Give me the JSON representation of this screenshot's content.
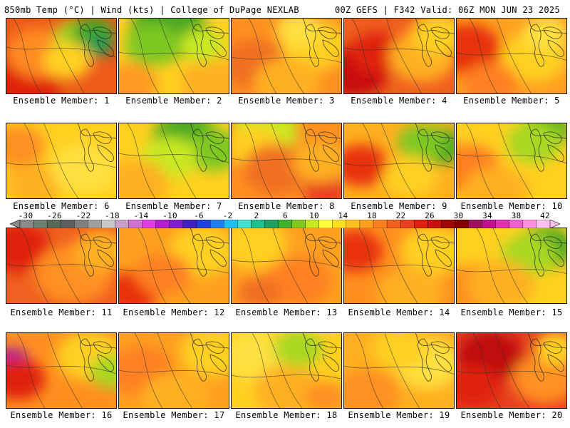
{
  "header": {
    "left": "850mb Temp (°C) | Wind (kts) | College of DuPage NEXLAB",
    "right": "00Z GEFS | F342 Valid: 06Z MON JUN 23 2025"
  },
  "panels": [
    {
      "label": "Ensemble Member: 1",
      "base": "#ee5a1a",
      "blobs": [
        [
          "#e02010",
          0.15,
          0.85,
          0.35
        ],
        [
          "#ff8a20",
          0.3,
          0.45,
          0.3
        ],
        [
          "#a8d820",
          0.65,
          0.25,
          0.22
        ],
        [
          "#4aa820",
          0.78,
          0.2,
          0.2
        ],
        [
          "#1a9a50",
          0.82,
          0.35,
          0.14
        ],
        [
          "#ffd020",
          0.55,
          0.55,
          0.22
        ]
      ]
    },
    {
      "label": "Ensemble Member: 2",
      "base": "#ffd020",
      "blobs": [
        [
          "#4aa820",
          0.45,
          0.15,
          0.35
        ],
        [
          "#7ec820",
          0.3,
          0.35,
          0.25
        ],
        [
          "#ff9a20",
          0.1,
          0.85,
          0.25
        ],
        [
          "#ffb020",
          0.85,
          0.85,
          0.3
        ],
        [
          "#c8e820",
          0.75,
          0.35,
          0.2
        ]
      ]
    },
    {
      "label": "Ensemble Member: 3",
      "base": "#ff9020",
      "blobs": [
        [
          "#ffd020",
          0.75,
          0.35,
          0.3
        ],
        [
          "#f07020",
          0.2,
          0.6,
          0.3
        ],
        [
          "#ffb020",
          0.5,
          0.85,
          0.3
        ],
        [
          "#ffe040",
          0.6,
          0.15,
          0.2
        ]
      ]
    },
    {
      "label": "Ensemble Member: 4",
      "base": "#f06020",
      "blobs": [
        [
          "#c81010",
          0.1,
          0.7,
          0.3
        ],
        [
          "#e02010",
          0.3,
          0.45,
          0.25
        ],
        [
          "#ffb020",
          0.7,
          0.5,
          0.3
        ],
        [
          "#ffd020",
          0.85,
          0.2,
          0.25
        ]
      ]
    },
    {
      "label": "Ensemble Member: 5",
      "base": "#ffa020",
      "blobs": [
        [
          "#e83010",
          0.1,
          0.4,
          0.3
        ],
        [
          "#ffd020",
          0.7,
          0.5,
          0.3
        ],
        [
          "#ff8020",
          0.3,
          0.85,
          0.25
        ],
        [
          "#ffe040",
          0.8,
          0.2,
          0.2
        ]
      ]
    },
    {
      "label": "Ensemble Member: 6",
      "base": "#ffd020",
      "blobs": [
        [
          "#ff9020",
          0.1,
          0.3,
          0.25
        ],
        [
          "#ffb020",
          0.25,
          0.8,
          0.25
        ],
        [
          "#ffe040",
          0.7,
          0.6,
          0.3
        ]
      ]
    },
    {
      "label": "Ensemble Member: 7",
      "base": "#ffd020",
      "blobs": [
        [
          "#4aa820",
          0.6,
          0.2,
          0.3
        ],
        [
          "#7ec820",
          0.85,
          0.35,
          0.25
        ],
        [
          "#c8e820",
          0.45,
          0.45,
          0.25
        ],
        [
          "#ffb020",
          0.15,
          0.8,
          0.3
        ]
      ]
    },
    {
      "label": "Ensemble Member: 8",
      "base": "#ff9020",
      "blobs": [
        [
          "#c8e820",
          0.3,
          0.1,
          0.3
        ],
        [
          "#ffd020",
          0.2,
          0.3,
          0.25
        ],
        [
          "#f07020",
          0.4,
          0.6,
          0.3
        ],
        [
          "#e84020",
          0.85,
          0.9,
          0.2
        ],
        [
          "#ffb020",
          0.8,
          0.5,
          0.25
        ]
      ]
    },
    {
      "label": "Ensemble Member: 9",
      "base": "#ffb020",
      "blobs": [
        [
          "#4aa820",
          0.85,
          0.3,
          0.22
        ],
        [
          "#7ec820",
          0.7,
          0.25,
          0.22
        ],
        [
          "#e83010",
          0.15,
          0.55,
          0.25
        ],
        [
          "#ffd020",
          0.6,
          0.7,
          0.25
        ]
      ]
    },
    {
      "label": "Ensemble Member: 10",
      "base": "#ffd020",
      "blobs": [
        [
          "#4aa820",
          0.8,
          0.1,
          0.22
        ],
        [
          "#a8d820",
          0.7,
          0.25,
          0.25
        ],
        [
          "#ff8020",
          0.1,
          0.6,
          0.3
        ],
        [
          "#ffb020",
          0.35,
          0.9,
          0.3
        ]
      ]
    },
    {
      "label": "Ensemble Member: 11",
      "base": "#f06020",
      "blobs": [
        [
          "#e02010",
          0.1,
          0.25,
          0.3
        ],
        [
          "#ff9020",
          0.6,
          0.6,
          0.35
        ],
        [
          "#ffb020",
          0.85,
          0.3,
          0.25
        ]
      ]
    },
    {
      "label": "Ensemble Member: 12",
      "base": "#ffa020",
      "blobs": [
        [
          "#e83010",
          0.1,
          0.85,
          0.25
        ],
        [
          "#ffd020",
          0.75,
          0.3,
          0.3
        ],
        [
          "#ff8020",
          0.4,
          0.6,
          0.25
        ]
      ]
    },
    {
      "label": "Ensemble Member: 13",
      "base": "#ffa020",
      "blobs": [
        [
          "#ffd020",
          0.2,
          0.2,
          0.3
        ],
        [
          "#ff8020",
          0.6,
          0.7,
          0.3
        ],
        [
          "#f07020",
          0.25,
          0.85,
          0.2
        ]
      ]
    },
    {
      "label": "Ensemble Member: 14",
      "base": "#ff9020",
      "blobs": [
        [
          "#e83010",
          0.1,
          0.3,
          0.25
        ],
        [
          "#ffd020",
          0.8,
          0.3,
          0.3
        ],
        [
          "#ffb020",
          0.6,
          0.85,
          0.3
        ]
      ]
    },
    {
      "label": "Ensemble Member: 15",
      "base": "#ffd020",
      "blobs": [
        [
          "#4aa820",
          0.8,
          0.25,
          0.25
        ],
        [
          "#a8d820",
          0.65,
          0.35,
          0.25
        ],
        [
          "#ff9020",
          0.15,
          0.8,
          0.3
        ],
        [
          "#ffb020",
          0.4,
          0.75,
          0.3
        ]
      ]
    },
    {
      "label": "Ensemble Member: 16",
      "base": "#ff9020",
      "blobs": [
        [
          "#a020a0",
          0.05,
          0.35,
          0.15
        ],
        [
          "#e02010",
          0.1,
          0.6,
          0.25
        ],
        [
          "#ffd020",
          0.75,
          0.3,
          0.3
        ],
        [
          "#a8d820",
          0.95,
          0.5,
          0.2
        ]
      ]
    },
    {
      "label": "Ensemble Member: 17",
      "base": "#ffa020",
      "blobs": [
        [
          "#ffd020",
          0.85,
          0.25,
          0.3
        ],
        [
          "#ff8020",
          0.2,
          0.5,
          0.3
        ],
        [
          "#ffb020",
          0.5,
          0.85,
          0.3
        ]
      ]
    },
    {
      "label": "Ensemble Member: 18",
      "base": "#ffd020",
      "blobs": [
        [
          "#ffe040",
          0.2,
          0.3,
          0.3
        ],
        [
          "#ffb020",
          0.5,
          0.75,
          0.3
        ],
        [
          "#ff9020",
          0.85,
          0.85,
          0.2
        ],
        [
          "#a8d820",
          0.6,
          0.2,
          0.22
        ]
      ]
    },
    {
      "label": "Ensemble Member: 19",
      "base": "#ffb020",
      "blobs": [
        [
          "#ffe040",
          0.75,
          0.4,
          0.3
        ],
        [
          "#ffd020",
          0.5,
          0.2,
          0.25
        ],
        [
          "#ff9020",
          0.2,
          0.8,
          0.3
        ]
      ]
    },
    {
      "label": "Ensemble Member: 20",
      "base": "#e84020",
      "blobs": [
        [
          "#c01010",
          0.3,
          0.3,
          0.3
        ],
        [
          "#e02010",
          0.15,
          0.7,
          0.25
        ],
        [
          "#ff9020",
          0.8,
          0.6,
          0.3
        ],
        [
          "#ffd020",
          0.9,
          0.2,
          0.2
        ]
      ]
    }
  ],
  "colorbar": {
    "tick_labels": [
      "-30",
      "-26",
      "-22",
      "-18",
      "-14",
      "-10",
      "-6",
      "-2",
      "2",
      "6",
      "10",
      "14",
      "18",
      "22",
      "26",
      "30",
      "34",
      "38",
      "42"
    ],
    "colors": [
      "#8a8a8a",
      "#6e7e70",
      "#5a6a5a",
      "#606060",
      "#808080",
      "#a0a0a0",
      "#c8c8c8",
      "#c8a0c8",
      "#d070d0",
      "#e040e0",
      "#b020d0",
      "#8020d0",
      "#4020c0",
      "#2040e0",
      "#2080f0",
      "#20c0f0",
      "#40e0d0",
      "#20c090",
      "#20a060",
      "#40b030",
      "#80c820",
      "#c8e820",
      "#ffff40",
      "#ffe020",
      "#ffc020",
      "#ffa020",
      "#ff8020",
      "#f06020",
      "#e84020",
      "#e02010",
      "#c81010",
      "#a00808",
      "#800000",
      "#a01060",
      "#c01090",
      "#e030b0",
      "#f060d0",
      "#ff90e0",
      "#ffc0f0"
    ]
  }
}
